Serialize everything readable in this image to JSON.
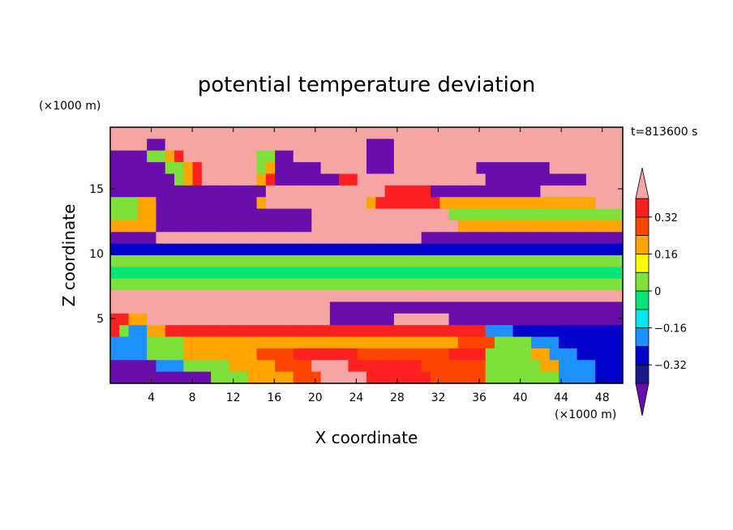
{
  "chart_data": {
    "type": "heatmap",
    "title": "potential temperature deviation",
    "xlabel": "X coordinate",
    "ylabel": "Z coordinate",
    "x_unit": "(×1000 m)",
    "y_unit": "(×1000 m)",
    "time_label": "t=813600 s",
    "xlim": [
      0,
      50
    ],
    "ylim": [
      0,
      19.75
    ],
    "x_ticks": [
      4,
      8,
      12,
      16,
      20,
      24,
      28,
      32,
      36,
      40,
      44,
      48
    ],
    "y_ticks": [
      5,
      10,
      15
    ],
    "colorbar": {
      "levels": [
        -0.4,
        -0.32,
        -0.24,
        -0.16,
        -0.08,
        0,
        0.08,
        0.16,
        0.24,
        0.32,
        0.4
      ],
      "labeled_levels": [
        0.32,
        0.16,
        0,
        -0.16,
        -0.32
      ],
      "colors": [
        "#6a0dad",
        "#1a1a8c",
        "#0000cd",
        "#1e90ff",
        "#00e5ee",
        "#00e57a",
        "#7fe03a",
        "#ffff00",
        "#ffa500",
        "#ff4500",
        "#ff2020",
        "#f6a5a5"
      ],
      "extend": "both"
    },
    "field_pattern": [
      "PPPPPPPPPPPPPPPPPPPPPPPPPPPPPPPPPPPPPPPPPPPPPPPPPPPPPPPP",
      "PPPPVVPPPPPPPPPPPPPPPPPPPPPPVVVPPPPPPPPPPPPPPPPPPPPPPPPP",
      "VVVVGGYRPPPPPPPPGGVVPPPPPPPPVVVPPPPPPPPPPPPPPPPPPPPPPPPP",
      "VVVVVVGGYRPPPPPPGYVVVVVPPPPPVVVPPPPPPPPPVVVVVVVVPPPPPPPP",
      "VVVVVVVGYRPPPPPPYRVVVVVVVRRPPPPPPPPPPPPPPVVVVVVVVVVVPPPP",
      "VVVVVVVVVVVVVVVVVPPPPPPPPPPPPPRRRRRVVVVVVVVVVVVPPPPPPPPP",
      "GGGYYVVVVVVVVVVVYPPPPPPPPPPPYRRRRRRRYYYYYYYYYYYYYYYYYPPP",
      "GGGYYVVVVVVVVVVVVVVVVVPPPPPPPPPPPPPPPGGGGGGGGGGGGGGGGGGG",
      "YYYYYVVVVVVVVVVVVVVVVVPPPPPPPPPPPPPPPPYYYYYYYYYYYYYYYYYY",
      "VVVVVPPPPPPPPPPPPPPPPPPPPPPPPPPPPPVVVVVVVVVVVVVVVVVVVVVV",
      "BBBBBBBBBBBBBBBBBBBBBBBBBBBBBBBBBBBBBBBBBBBBBBBBBBBBBBBB",
      "GGGGGGGGGGGGGGGGGGGGGGGGGGGGGGGGGGGGGGGGGGGGGGGGGGGGGGGG",
      "LLLLLLLLLLLLLLLLLLLLLLLLLLLLLLLLLLLLLLLLLLLLLLLLLLLLLLLL",
      "GGGGGGGGGGGGGGGGGGGGGGGGGGGGGGGGGGGGGGGGGGGGGGGGGGGGGGGG",
      "PPPPPPPPPPPPPPPPPPPPPPPPPPPPPPPPPPPPPPPPPPPPPPPPPPPPPPPP",
      "PPPPPPPPPPPPPPPPPPPPPPPPVVVVVVVVVVVVVVVVVVVVVVVVVVVVVVVV",
      "RRYYPPPPPPPPPPPPPPPPPPPPVVVVVVVPPPPPPVVVVVVVVVVVVVVVVVVV",
      "RGCCYYRRRRRRRRRRRRRRRRRRRRRRRRRRRRRRRRRRRCCCBBBBBBBBBBBBB",
      "CCCCGGGGYYYYYYYYYYYYYYYYYYYYYYYYYYYYYYOOOOGGGGCCCBBBBBBBB",
      "CCCCGGGGYYYYYYYYOOOORRRRRRROOOOOOOOOORRRRGGGGGYYCCCBBBBBB",
      "VVVVVCCCGGGGGYYYYYOOOOPPPPRRRRRRRROOOOOOOGGGGGGYYCCCCBBBB",
      "VVVVVVVVVVVGGGGYYYYYOOOPPPPPRRRRRRROOOOOOGGGGGGGGCCCCBBBB"
    ],
    "field_legend": {
      "V": -0.45,
      "B": -0.3,
      "C": -0.2,
      "L": -0.05,
      "G": 0.02,
      "Y": 0.18,
      "O": 0.25,
      "R": 0.35,
      "P": 0.45
    }
  }
}
